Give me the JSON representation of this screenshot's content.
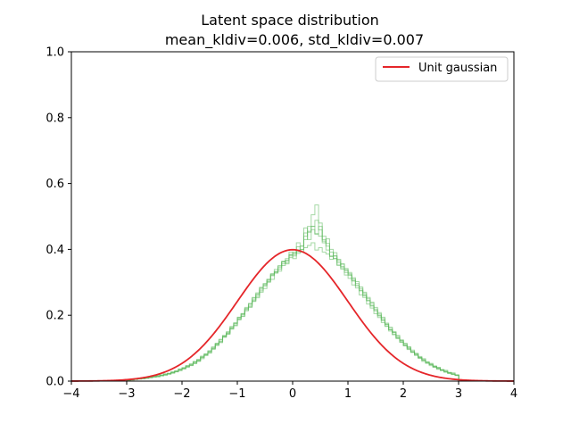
{
  "chart_data": {
    "type": "line",
    "title": "Latent space distribution",
    "subtitle": "mean_kldiv=0.006, std_kldiv=0.007",
    "xlabel": "",
    "ylabel": "",
    "xlim": [
      -4,
      4
    ],
    "ylim": [
      0.0,
      1.0
    ],
    "x_ticks": [
      -4,
      -3,
      -2,
      -1,
      0,
      1,
      2,
      3,
      4
    ],
    "x_tick_labels": [
      "−4",
      "−3",
      "−2",
      "−1",
      "0",
      "1",
      "2",
      "3",
      "4"
    ],
    "y_ticks": [
      0.0,
      0.2,
      0.4,
      0.6,
      0.8,
      1.0
    ],
    "y_tick_labels": [
      "0.0",
      "0.2",
      "0.4",
      "0.6",
      "0.8",
      "1.0"
    ],
    "grid": false,
    "legend": {
      "placement": "top-right",
      "entries": [
        {
          "label": "Unit gaussian",
          "color": "#e5262a"
        }
      ]
    },
    "colors": {
      "gaussian": "#e5262a",
      "histogram": "#5bb85b"
    },
    "gaussian": {
      "name": "Unit gaussian",
      "mean": 0,
      "std": 1,
      "peak": 0.399
    },
    "histogram_series": [
      {
        "bin_start": -3.0,
        "bin_width": 0.0667,
        "values": [
          0.003,
          0.004,
          0.006,
          0.008,
          0.007,
          0.01,
          0.011,
          0.013,
          0.015,
          0.017,
          0.018,
          0.022,
          0.026,
          0.028,
          0.035,
          0.039,
          0.044,
          0.049,
          0.058,
          0.063,
          0.071,
          0.082,
          0.089,
          0.101,
          0.113,
          0.121,
          0.136,
          0.147,
          0.161,
          0.174,
          0.19,
          0.202,
          0.218,
          0.23,
          0.247,
          0.262,
          0.279,
          0.292,
          0.306,
          0.32,
          0.333,
          0.345,
          0.356,
          0.367,
          0.38,
          0.388,
          0.393,
          0.399,
          0.405,
          0.412,
          0.42,
          0.398,
          0.405,
          0.392,
          0.386,
          0.378,
          0.372,
          0.36,
          0.348,
          0.338,
          0.326,
          0.31,
          0.296,
          0.281,
          0.266,
          0.25,
          0.236,
          0.219,
          0.204,
          0.19,
          0.173,
          0.16,
          0.148,
          0.136,
          0.122,
          0.112,
          0.1,
          0.09,
          0.082,
          0.071,
          0.063,
          0.056,
          0.05,
          0.043,
          0.038,
          0.033,
          0.028,
          0.024,
          0.021,
          0.018
        ]
      },
      {
        "bin_start": -3.0,
        "bin_width": 0.0667,
        "values": [
          0.004,
          0.005,
          0.005,
          0.007,
          0.009,
          0.008,
          0.012,
          0.014,
          0.013,
          0.018,
          0.021,
          0.021,
          0.025,
          0.031,
          0.032,
          0.041,
          0.046,
          0.051,
          0.055,
          0.066,
          0.074,
          0.078,
          0.092,
          0.098,
          0.11,
          0.125,
          0.133,
          0.15,
          0.158,
          0.177,
          0.186,
          0.205,
          0.221,
          0.226,
          0.252,
          0.257,
          0.285,
          0.289,
          0.309,
          0.325,
          0.329,
          0.35,
          0.362,
          0.36,
          0.385,
          0.392,
          0.388,
          0.41,
          0.43,
          0.455,
          0.47,
          0.488,
          0.459,
          0.425,
          0.398,
          0.37,
          0.38,
          0.352,
          0.356,
          0.33,
          0.33,
          0.304,
          0.302,
          0.276,
          0.27,
          0.245,
          0.24,
          0.214,
          0.208,
          0.186,
          0.176,
          0.156,
          0.15,
          0.132,
          0.125,
          0.108,
          0.103,
          0.087,
          0.084,
          0.069,
          0.065,
          0.054,
          0.051,
          0.042,
          0.039,
          0.032,
          0.029,
          0.023,
          0.022,
          0.017
        ]
      },
      {
        "bin_start": -3.0,
        "bin_width": 0.0667,
        "values": [
          0.002,
          0.005,
          0.006,
          0.007,
          0.008,
          0.011,
          0.01,
          0.014,
          0.016,
          0.016,
          0.02,
          0.024,
          0.024,
          0.03,
          0.037,
          0.037,
          0.047,
          0.047,
          0.06,
          0.06,
          0.076,
          0.08,
          0.087,
          0.104,
          0.108,
          0.127,
          0.134,
          0.144,
          0.163,
          0.17,
          0.194,
          0.198,
          0.214,
          0.234,
          0.242,
          0.268,
          0.274,
          0.296,
          0.302,
          0.326,
          0.328,
          0.35,
          0.351,
          0.372,
          0.375,
          0.38,
          0.398,
          0.392,
          0.44,
          0.47,
          0.505,
          0.535,
          0.48,
          0.44,
          0.418,
          0.392,
          0.38,
          0.366,
          0.344,
          0.342,
          0.322,
          0.314,
          0.29,
          0.286,
          0.262,
          0.254,
          0.23,
          0.224,
          0.198,
          0.194,
          0.168,
          0.164,
          0.142,
          0.139,
          0.118,
          0.115,
          0.096,
          0.094,
          0.078,
          0.075,
          0.06,
          0.059,
          0.047,
          0.046,
          0.036,
          0.035,
          0.027,
          0.026,
          0.02,
          0.019
        ]
      },
      {
        "bin_start": -3.0,
        "bin_width": 0.0667,
        "values": [
          0.003,
          0.004,
          0.007,
          0.006,
          0.009,
          0.01,
          0.013,
          0.012,
          0.017,
          0.019,
          0.019,
          0.023,
          0.028,
          0.029,
          0.033,
          0.04,
          0.042,
          0.052,
          0.053,
          0.064,
          0.068,
          0.083,
          0.085,
          0.1,
          0.112,
          0.117,
          0.139,
          0.142,
          0.166,
          0.168,
          0.193,
          0.196,
          0.224,
          0.224,
          0.254,
          0.253,
          0.283,
          0.281,
          0.309,
          0.309,
          0.339,
          0.334,
          0.364,
          0.356,
          0.383,
          0.372,
          0.408,
          0.4,
          0.45,
          0.43,
          0.46,
          0.446,
          0.47,
          0.42,
          0.432,
          0.38,
          0.39,
          0.352,
          0.355,
          0.322,
          0.322,
          0.292,
          0.29,
          0.262,
          0.259,
          0.234,
          0.228,
          0.205,
          0.2,
          0.178,
          0.172,
          0.152,
          0.147,
          0.129,
          0.124,
          0.107,
          0.104,
          0.088,
          0.084,
          0.071,
          0.068,
          0.057,
          0.054,
          0.045,
          0.042,
          0.035,
          0.033,
          0.026,
          0.025,
          0.019
        ]
      },
      {
        "bin_start": -3.0,
        "bin_width": 0.0667,
        "values": [
          0.002,
          0.003,
          0.005,
          0.008,
          0.007,
          0.009,
          0.012,
          0.015,
          0.014,
          0.017,
          0.022,
          0.022,
          0.027,
          0.029,
          0.036,
          0.038,
          0.045,
          0.048,
          0.057,
          0.061,
          0.072,
          0.079,
          0.091,
          0.097,
          0.115,
          0.119,
          0.137,
          0.146,
          0.16,
          0.176,
          0.188,
          0.205,
          0.214,
          0.236,
          0.244,
          0.265,
          0.27,
          0.295,
          0.3,
          0.322,
          0.332,
          0.34,
          0.362,
          0.366,
          0.392,
          0.385,
          0.42,
          0.41,
          0.465,
          0.452,
          0.47,
          0.448,
          0.44,
          0.43,
          0.41,
          0.4,
          0.372,
          0.37,
          0.34,
          0.336,
          0.312,
          0.306,
          0.283,
          0.274,
          0.254,
          0.244,
          0.222,
          0.214,
          0.193,
          0.184,
          0.166,
          0.156,
          0.141,
          0.131,
          0.119,
          0.109,
          0.098,
          0.089,
          0.08,
          0.072,
          0.064,
          0.057,
          0.051,
          0.044,
          0.04,
          0.034,
          0.03,
          0.026,
          0.022,
          0.018
        ]
      }
    ]
  }
}
